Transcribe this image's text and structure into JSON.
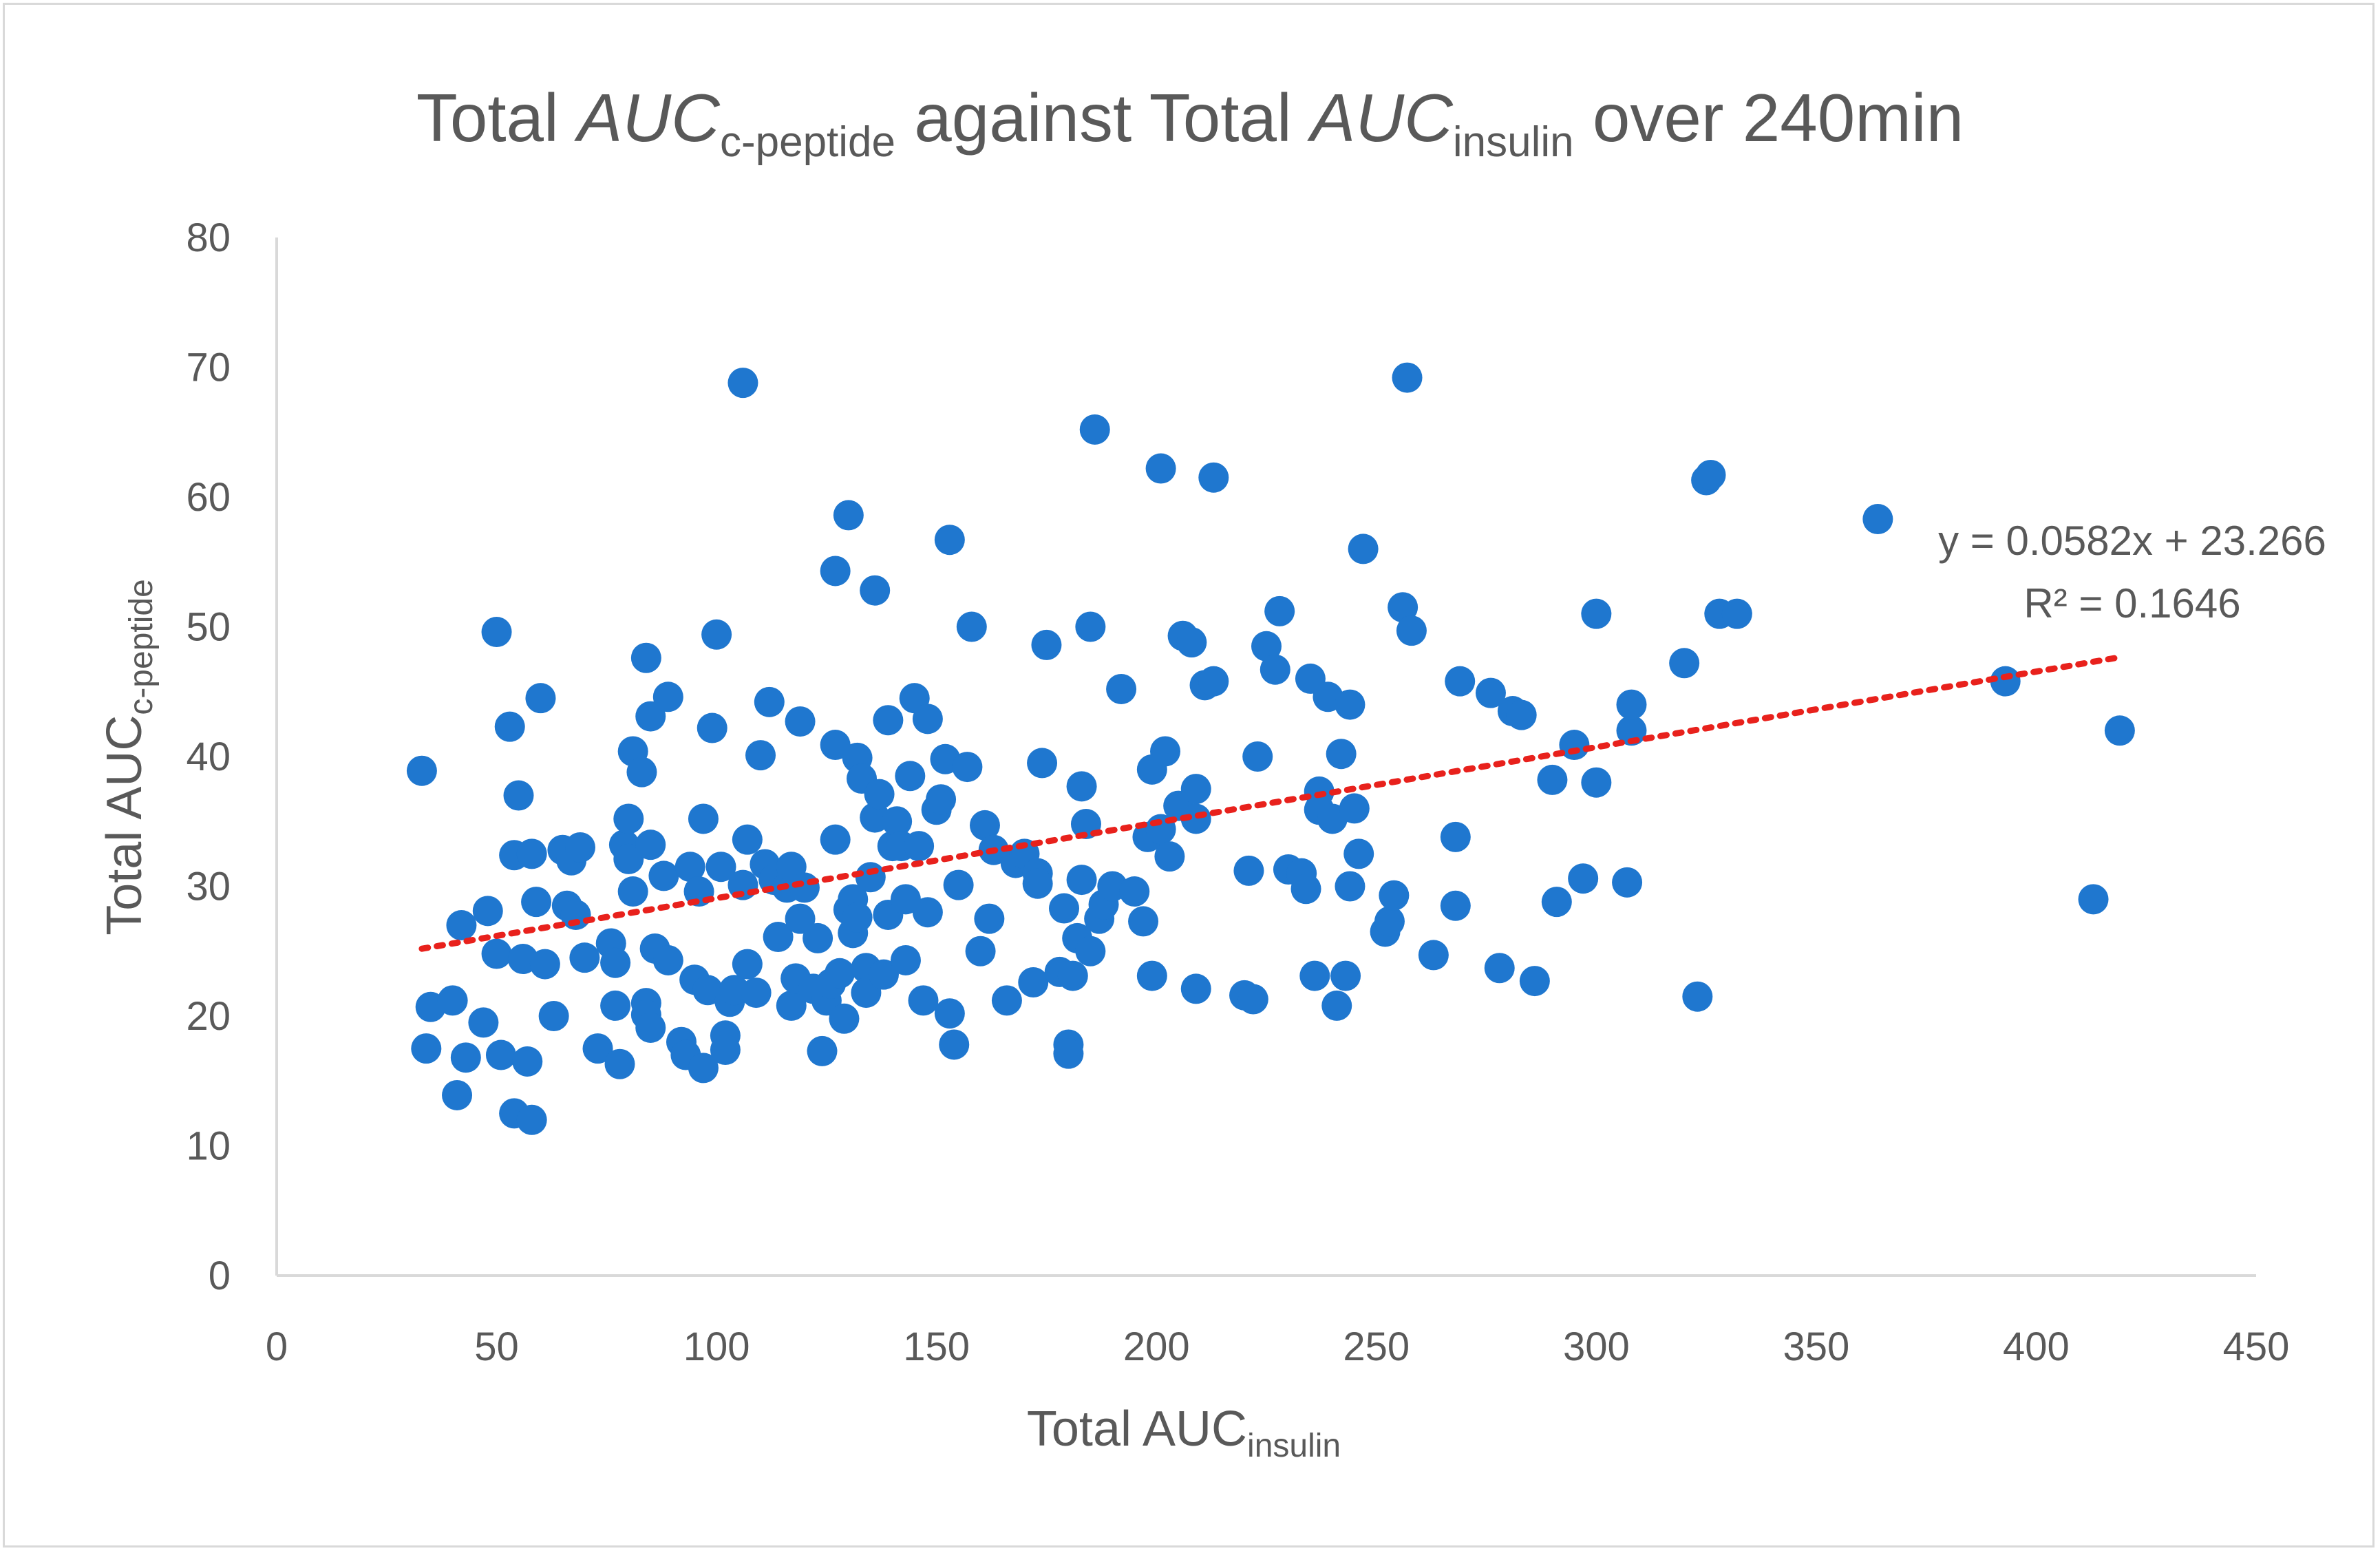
{
  "chart_data": {
    "type": "scatter",
    "title": {
      "p1": "Total ",
      "p2": "AUC",
      "p2_sub": "c-peptide",
      "p3": " against Total ",
      "p4": "AUC",
      "p4_sub": "insulin",
      "p5": " over 240min"
    },
    "xlabel": {
      "main": "Total AUC",
      "sub": "insulin"
    },
    "ylabel": {
      "main": "Total AUC",
      "sub": "c-peptide"
    },
    "xlim": [
      0,
      450
    ],
    "ylim": [
      0,
      80
    ],
    "x_ticks": [
      "0",
      "50",
      "100",
      "150",
      "200",
      "250",
      "300",
      "350",
      "400",
      "450"
    ],
    "y_ticks": [
      "0",
      "10",
      "20",
      "30",
      "40",
      "50",
      "60",
      "70",
      "80"
    ],
    "grid": false,
    "point_color": "#1f77cf",
    "trendline_color": "#e8211c",
    "trendline": {
      "slope": 0.0582,
      "intercept": 23.266,
      "x_range": [
        33,
        419
      ]
    },
    "trendline_equation": "y = 0.0582x + 23.266",
    "r_squared_label": "R² = 0.1646",
    "points": [
      [
        33,
        38.9
      ],
      [
        34,
        17.5
      ],
      [
        35,
        20.7
      ],
      [
        40,
        21.2
      ],
      [
        41,
        13.9
      ],
      [
        42,
        27.0
      ],
      [
        43,
        16.8
      ],
      [
        47,
        19.5
      ],
      [
        48,
        28.1
      ],
      [
        50,
        49.6
      ],
      [
        50,
        24.8
      ],
      [
        51,
        17.0
      ],
      [
        53,
        42.3
      ],
      [
        54,
        32.4
      ],
      [
        54,
        12.5
      ],
      [
        55,
        37.0
      ],
      [
        56,
        24.4
      ],
      [
        57,
        16.5
      ],
      [
        58,
        12.0
      ],
      [
        58,
        32.5
      ],
      [
        59,
        28.8
      ],
      [
        60,
        44.5
      ],
      [
        61,
        24.0
      ],
      [
        63,
        20.0
      ],
      [
        65,
        32.8
      ],
      [
        66,
        28.5
      ],
      [
        67,
        32.0
      ],
      [
        68,
        27.8
      ],
      [
        69,
        33.0
      ],
      [
        70,
        24.5
      ],
      [
        73,
        17.5
      ],
      [
        76,
        25.6
      ],
      [
        77,
        24.1
      ],
      [
        77,
        20.8
      ],
      [
        78,
        16.3
      ],
      [
        79,
        33.2
      ],
      [
        80,
        35.2
      ],
      [
        80,
        32.1
      ],
      [
        81,
        29.6
      ],
      [
        81,
        40.4
      ],
      [
        83,
        38.8
      ],
      [
        84,
        47.6
      ],
      [
        84,
        21.0
      ],
      [
        84,
        20.1
      ],
      [
        85,
        43.1
      ],
      [
        85,
        33.2
      ],
      [
        85,
        19.1
      ],
      [
        86,
        25.2
      ],
      [
        88,
        30.8
      ],
      [
        89,
        44.6
      ],
      [
        89,
        24.3
      ],
      [
        92,
        18.0
      ],
      [
        93,
        17.0
      ],
      [
        94,
        31.5
      ],
      [
        95,
        22.8
      ],
      [
        96,
        29.6
      ],
      [
        97,
        35.2
      ],
      [
        97,
        16.0
      ],
      [
        98,
        22.0
      ],
      [
        99,
        42.2
      ],
      [
        100,
        49.4
      ],
      [
        101,
        31.5
      ],
      [
        102,
        18.5
      ],
      [
        102,
        17.4
      ],
      [
        103,
        21.1
      ],
      [
        104,
        22.0
      ],
      [
        106,
        68.8
      ],
      [
        106,
        30.1
      ],
      [
        107,
        33.6
      ],
      [
        107,
        24.0
      ],
      [
        109,
        21.8
      ],
      [
        110,
        40.1
      ],
      [
        111,
        31.7
      ],
      [
        112,
        44.2
      ],
      [
        113,
        30.5
      ],
      [
        114,
        26.1
      ],
      [
        116,
        29.9
      ],
      [
        117,
        31.5
      ],
      [
        117,
        20.8
      ],
      [
        118,
        22.9
      ],
      [
        119,
        27.5
      ],
      [
        119,
        42.7
      ],
      [
        120,
        29.9
      ],
      [
        122,
        22.1
      ],
      [
        123,
        26.0
      ],
      [
        124,
        17.3
      ],
      [
        125,
        21.2
      ],
      [
        126,
        22.5
      ],
      [
        127,
        54.3
      ],
      [
        127,
        40.9
      ],
      [
        127,
        33.6
      ],
      [
        128,
        23.3
      ],
      [
        129,
        19.8
      ],
      [
        130,
        58.6
      ],
      [
        130,
        28.2
      ],
      [
        131,
        29.0
      ],
      [
        131,
        26.4
      ],
      [
        132,
        39.9
      ],
      [
        132,
        27.6
      ],
      [
        133,
        38.3
      ],
      [
        134,
        23.7
      ],
      [
        134,
        21.8
      ],
      [
        135,
        30.7
      ],
      [
        136,
        52.8
      ],
      [
        136,
        35.3
      ],
      [
        137,
        37.1
      ],
      [
        138,
        23.2
      ],
      [
        139,
        42.8
      ],
      [
        139,
        27.8
      ],
      [
        140,
        33.1
      ],
      [
        141,
        35.0
      ],
      [
        142,
        33.1
      ],
      [
        143,
        24.3
      ],
      [
        143,
        29.0
      ],
      [
        144,
        38.5
      ],
      [
        145,
        44.5
      ],
      [
        146,
        33.1
      ],
      [
        147,
        21.2
      ],
      [
        148,
        42.9
      ],
      [
        148,
        28.0
      ],
      [
        150,
        35.9
      ],
      [
        151,
        36.7
      ],
      [
        152,
        39.8
      ],
      [
        153,
        56.7
      ],
      [
        153,
        20.2
      ],
      [
        154,
        17.8
      ],
      [
        155,
        30.1
      ],
      [
        157,
        39.2
      ],
      [
        158,
        50.0
      ],
      [
        160,
        25.0
      ],
      [
        161,
        34.7
      ],
      [
        162,
        27.5
      ],
      [
        163,
        32.8
      ],
      [
        166,
        21.2
      ],
      [
        168,
        31.8
      ],
      [
        170,
        32.5
      ],
      [
        172,
        22.6
      ],
      [
        173,
        31.0
      ],
      [
        173,
        30.2
      ],
      [
        174,
        39.5
      ],
      [
        175,
        48.6
      ],
      [
        178,
        23.4
      ],
      [
        179,
        28.3
      ],
      [
        180,
        17.8
      ],
      [
        180,
        17.1
      ],
      [
        181,
        23.1
      ],
      [
        182,
        26.0
      ],
      [
        183,
        30.5
      ],
      [
        183,
        37.7
      ],
      [
        184,
        34.8
      ],
      [
        185,
        50.0
      ],
      [
        185,
        25.0
      ],
      [
        186,
        65.2
      ],
      [
        187,
        27.5
      ],
      [
        188,
        28.6
      ],
      [
        190,
        30.0
      ],
      [
        192,
        45.2
      ],
      [
        195,
        29.6
      ],
      [
        197,
        27.3
      ],
      [
        198,
        33.8
      ],
      [
        199,
        23.1
      ],
      [
        199,
        39.0
      ],
      [
        201,
        62.2
      ],
      [
        201,
        34.4
      ],
      [
        202,
        40.4
      ],
      [
        203,
        32.3
      ],
      [
        205,
        36.2
      ],
      [
        206,
        49.3
      ],
      [
        208,
        48.8
      ],
      [
        209,
        37.5
      ],
      [
        209,
        35.2
      ],
      [
        209,
        22.1
      ],
      [
        211,
        45.5
      ],
      [
        213,
        61.5
      ],
      [
        213,
        45.8
      ],
      [
        220,
        21.6
      ],
      [
        221,
        31.2
      ],
      [
        222,
        21.3
      ],
      [
        223,
        40.0
      ],
      [
        225,
        48.5
      ],
      [
        227,
        46.7
      ],
      [
        228,
        51.2
      ],
      [
        230,
        31.3
      ],
      [
        233,
        31.0
      ],
      [
        234,
        29.8
      ],
      [
        235,
        46.0
      ],
      [
        236,
        23.1
      ],
      [
        237,
        37.3
      ],
      [
        237,
        35.9
      ],
      [
        239,
        44.6
      ],
      [
        240,
        35.2
      ],
      [
        241,
        20.8
      ],
      [
        242,
        40.2
      ],
      [
        243,
        23.1
      ],
      [
        244,
        44.0
      ],
      [
        244,
        30.0
      ],
      [
        245,
        36.0
      ],
      [
        246,
        32.5
      ],
      [
        247,
        56.0
      ],
      [
        252,
        26.5
      ],
      [
        253,
        27.3
      ],
      [
        254,
        29.3
      ],
      [
        256,
        51.5
      ],
      [
        257,
        69.2
      ],
      [
        258,
        49.7
      ],
      [
        263,
        24.7
      ],
      [
        268,
        33.8
      ],
      [
        268,
        28.5
      ],
      [
        269,
        45.8
      ],
      [
        276,
        44.9
      ],
      [
        278,
        23.7
      ],
      [
        281,
        43.5
      ],
      [
        283,
        43.2
      ],
      [
        286,
        22.7
      ],
      [
        290,
        38.2
      ],
      [
        291,
        28.8
      ],
      [
        295,
        40.9
      ],
      [
        297,
        30.6
      ],
      [
        300,
        51.0
      ],
      [
        300,
        38.0
      ],
      [
        307,
        30.3
      ],
      [
        308,
        42.0
      ],
      [
        308,
        44.0
      ],
      [
        320,
        47.2
      ],
      [
        323,
        21.5
      ],
      [
        325,
        61.3
      ],
      [
        326,
        61.7
      ],
      [
        328,
        51.0
      ],
      [
        332,
        51.0
      ],
      [
        364,
        58.3
      ],
      [
        393,
        45.8
      ],
      [
        413,
        29.0
      ],
      [
        419,
        42.0
      ]
    ]
  }
}
